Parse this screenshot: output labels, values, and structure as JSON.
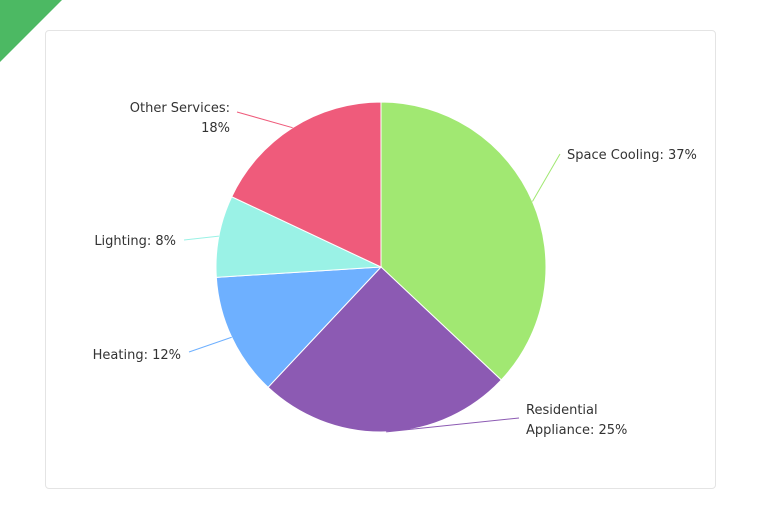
{
  "chart_data": {
    "type": "pie",
    "title": "",
    "slices": [
      {
        "name": "Space Cooling",
        "label": "Space Cooling: 37%",
        "value": 37,
        "color": "#a1e872"
      },
      {
        "name": "Residential Appliance",
        "label_line1": "Residential",
        "label_line2": "Appliance: 25%",
        "value": 25,
        "color": "#8c5ab3"
      },
      {
        "name": "Heating",
        "label": "Heating: 12%",
        "value": 12,
        "color": "#6eb0ff"
      },
      {
        "name": "Lighting",
        "label": "Lighting: 8%",
        "value": 8,
        "color": "#9af2e6"
      },
      {
        "name": "Other Services",
        "label_line1": "Other Services:",
        "label_line2": "18%",
        "value": 18,
        "color": "#ef5b7b"
      }
    ]
  },
  "theme": {
    "ribbon_color": "#4cb963",
    "card_border_color": "#e4e4e4",
    "text_color": "#333333"
  },
  "icons": {
    "ribbon": "corner-ribbon-icon"
  }
}
